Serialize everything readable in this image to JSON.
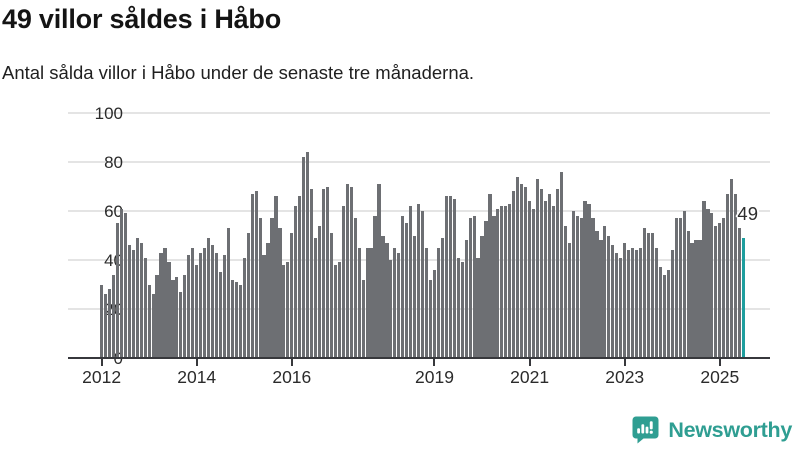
{
  "header": {
    "title": "49 villor såldes i Håbo",
    "subtitle": "Antal sålda villor i Håbo under de senaste tre månaderna."
  },
  "annotation": {
    "label": "49"
  },
  "footer": {
    "brand": "Newsworthy",
    "brand_color": "#2f9e92",
    "logo_icon": "bar-chart-speech-bubble-icon"
  },
  "chart_data": {
    "type": "bar",
    "title": "49 villor såldes i Håbo",
    "subtitle": "Antal sålda villor i Håbo under de senaste tre månaderna.",
    "unit": "sålda villor (rullande tre månader)",
    "frequency": "monthly",
    "x_start": "2012-01",
    "x_end": "2025-07",
    "xlabel": "",
    "ylabel": "",
    "ylim": [
      0,
      100
    ],
    "y_ticks": [
      0,
      20,
      40,
      60,
      80,
      100
    ],
    "x_tick_years": [
      2012,
      2014,
      2016,
      2019,
      2021,
      2023,
      2025
    ],
    "grid": true,
    "bar_color": "#6d6f73",
    "highlight_color": "#1e9e9e",
    "highlight_index": 162,
    "highlight_value": 49,
    "highlight_label": "49",
    "values": [
      30,
      26,
      28,
      34,
      55,
      61,
      59,
      46,
      44,
      49,
      47,
      41,
      30,
      26,
      34,
      43,
      45,
      39,
      32,
      33,
      27,
      34,
      42,
      45,
      38,
      43,
      45,
      49,
      46,
      43,
      35,
      42,
      53,
      32,
      31,
      30,
      41,
      51,
      67,
      68,
      57,
      42,
      47,
      57,
      66,
      53,
      38,
      39,
      51,
      62,
      66,
      82,
      84,
      69,
      49,
      54,
      69,
      70,
      51,
      38,
      39,
      62,
      71,
      70,
      57,
      45,
      32,
      45,
      45,
      58,
      71,
      50,
      47,
      40,
      45,
      43,
      58,
      55,
      62,
      50,
      63,
      60,
      45,
      32,
      36,
      45,
      49,
      66,
      66,
      65,
      41,
      39,
      48,
      57,
      58,
      41,
      50,
      56,
      67,
      58,
      61,
      62,
      62,
      63,
      68,
      74,
      71,
      70,
      64,
      61,
      73,
      69,
      64,
      67,
      62,
      69,
      76,
      54,
      47,
      60,
      58,
      57,
      64,
      63,
      57,
      52,
      48,
      54,
      50,
      46,
      43,
      41,
      47,
      44,
      45,
      44,
      45,
      53,
      51,
      51,
      45,
      37,
      34,
      36,
      44,
      57,
      57,
      60,
      52,
      47,
      48,
      48,
      64,
      61,
      59,
      54,
      55,
      57,
      67,
      73,
      67,
      53,
      49
    ]
  }
}
